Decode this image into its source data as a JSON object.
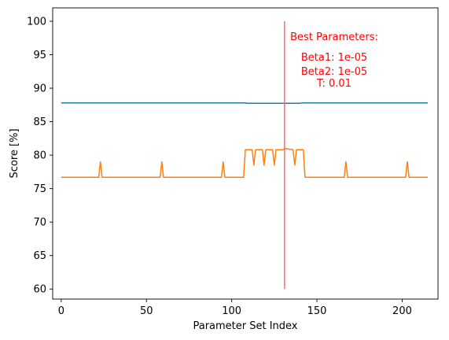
{
  "chart_data": {
    "type": "line",
    "xlabel": "Parameter Set Index",
    "ylabel": "Score [%]",
    "xlim": [
      -5,
      221
    ],
    "ylim": [
      58.5,
      102
    ],
    "xticks": [
      0,
      50,
      100,
      150,
      200
    ],
    "yticks": [
      60,
      65,
      70,
      75,
      80,
      85,
      90,
      95,
      100
    ],
    "grid": false,
    "series": [
      {
        "color": "#1f77b4",
        "points": [
          [
            0,
            87.8
          ],
          [
            108,
            87.8
          ],
          [
            109,
            87.75
          ],
          [
            140,
            87.75
          ],
          [
            141,
            87.8
          ],
          [
            215,
            87.8
          ]
        ]
      },
      {
        "color": "#ff7f0e",
        "points": [
          [
            0,
            76.7
          ],
          [
            22,
            76.7
          ],
          [
            23,
            79.0
          ],
          [
            24,
            76.7
          ],
          [
            58,
            76.7
          ],
          [
            59,
            79.0
          ],
          [
            60,
            76.7
          ],
          [
            94,
            76.7
          ],
          [
            95,
            79.0
          ],
          [
            96,
            76.7
          ],
          [
            107,
            76.7
          ],
          [
            108,
            80.8
          ],
          [
            112,
            80.8
          ],
          [
            113,
            78.5
          ],
          [
            114,
            80.8
          ],
          [
            118,
            80.8
          ],
          [
            119,
            78.5
          ],
          [
            120,
            80.8
          ],
          [
            124,
            80.8
          ],
          [
            125,
            78.5
          ],
          [
            126,
            80.8
          ],
          [
            130,
            80.8
          ],
          [
            131,
            81.0
          ],
          [
            136,
            80.8
          ],
          [
            137,
            78.5
          ],
          [
            138,
            80.8
          ],
          [
            142,
            80.8
          ],
          [
            143,
            76.7
          ],
          [
            166,
            76.7
          ],
          [
            167,
            79.0
          ],
          [
            168,
            76.7
          ],
          [
            202,
            76.7
          ],
          [
            203,
            79.0
          ],
          [
            204,
            76.7
          ],
          [
            215,
            76.7
          ]
        ]
      }
    ],
    "best_line": {
      "x": 131,
      "y_range": [
        60,
        100
      ],
      "color": "#ff6b6b"
    },
    "annotation": {
      "color": "#ff0000",
      "lines": [
        "Best Parameters:",
        "Beta1: 1e-05",
        "Beta2: 1e-05",
        "T: 0.01"
      ]
    }
  }
}
